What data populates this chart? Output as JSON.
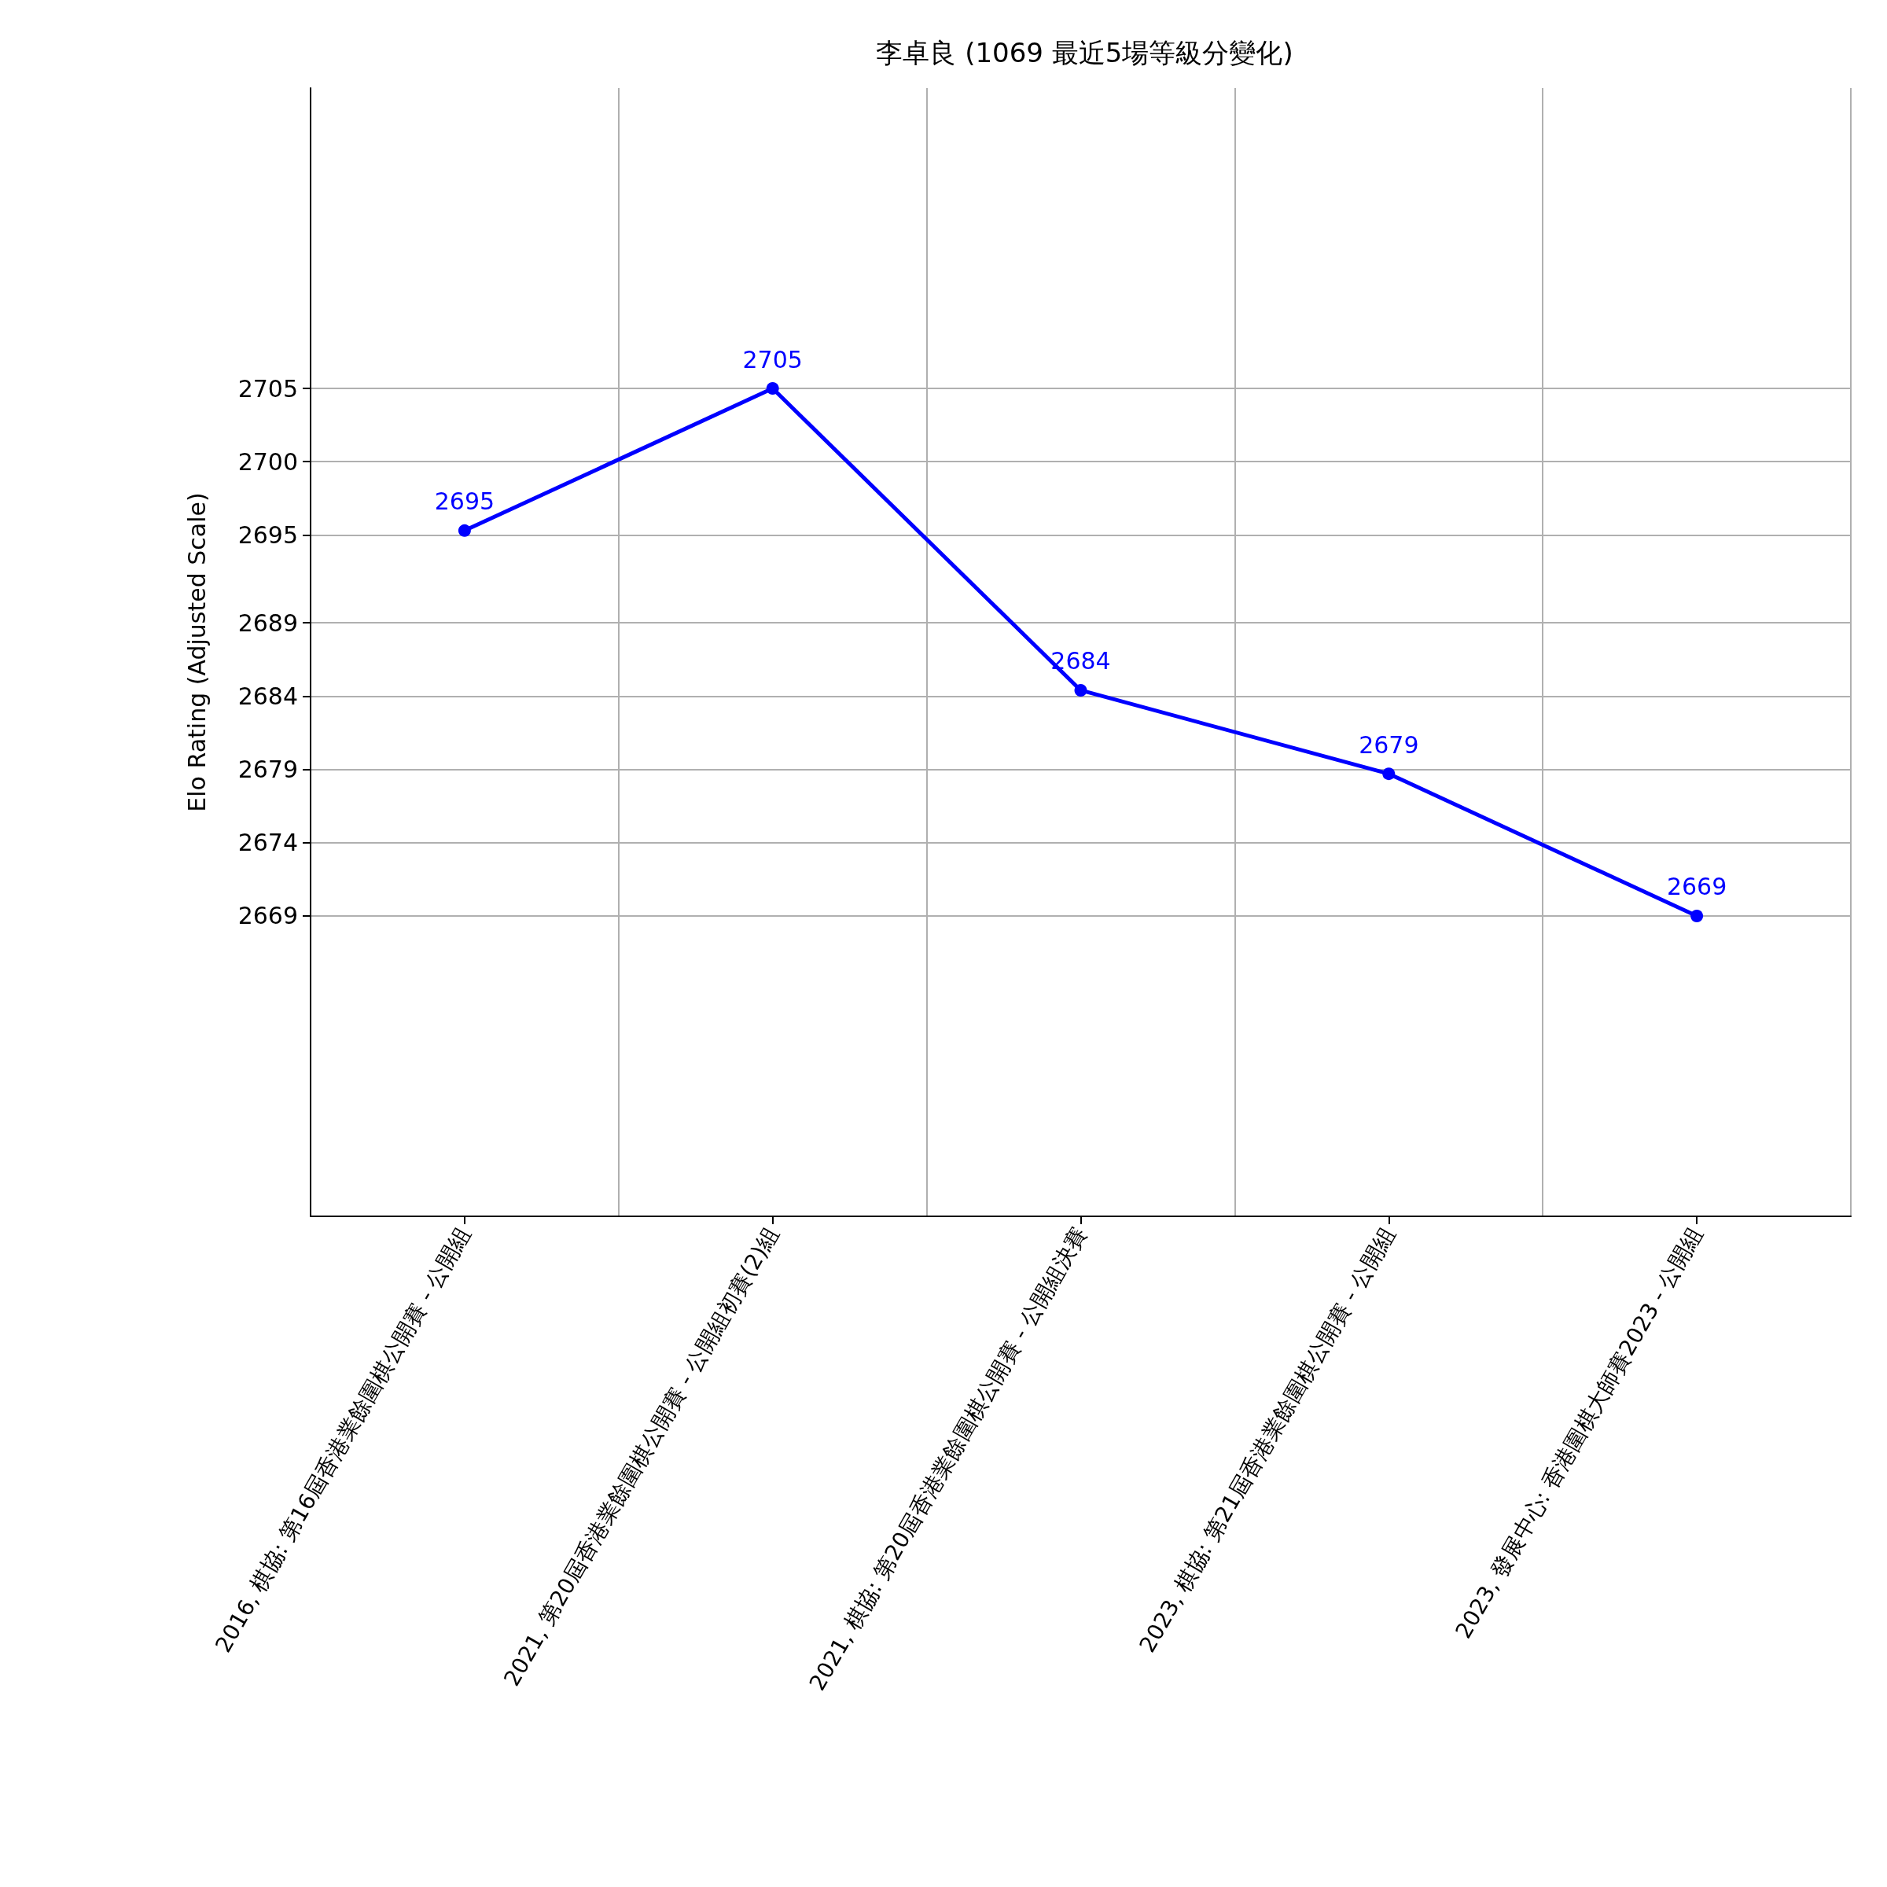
{
  "chart_data": {
    "type": "line",
    "title": "李卓良 (1069 最近5場等級分變化)",
    "ylabel": "Elo Rating (Adjusted Scale)",
    "categories": [
      "2016, 棋協: 第16屆香港業餘圍棋公開賽 - 公開組",
      "2021, 第20屆香港業餘圍棋公開賽 - 公開組初賽(2)組",
      "2021, 棋協: 第20屆香港業餘圍棋公開賽 - 公開組決賽",
      "2023, 棋協: 第21屆香港業餘圍棋公開賽 - 公開組",
      "2023, 發展中心: 香港圍棋大師賽2023 - 公開組"
    ],
    "series": [
      {
        "color": "#0000ff",
        "values": [
          2695.3,
          2705,
          2684.4,
          2678.7,
          2669
        ],
        "value_labels": [
          "2695",
          "2705",
          "2684",
          "2679",
          "2669"
        ]
      }
    ],
    "ylim": [
      2648.5,
      2725.5
    ],
    "yticks": [
      2669,
      2674,
      2679,
      2684,
      2689,
      2695,
      2700,
      2705
    ],
    "grid": true,
    "marker": "circle",
    "line_style": "solid"
  }
}
